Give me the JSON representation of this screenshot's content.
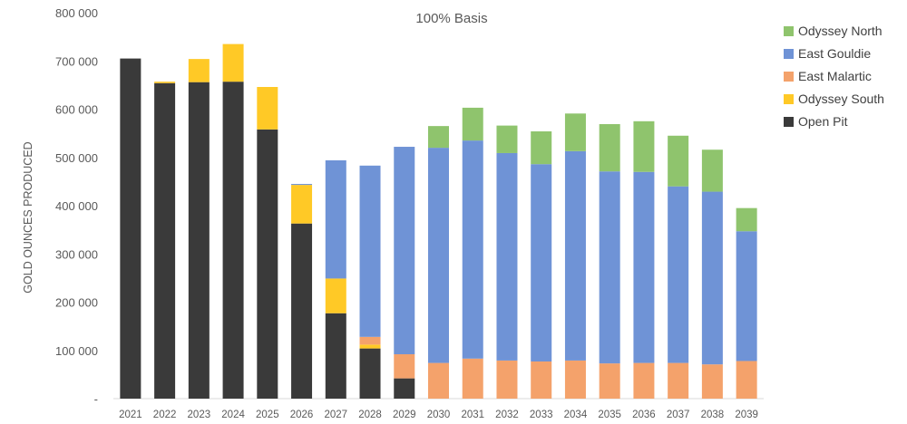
{
  "chart_data": {
    "type": "bar",
    "stacked": true,
    "title": "100% Basis",
    "xlabel": "",
    "ylabel": "GOLD OUNCES PRODUCED",
    "ylim": [
      0,
      800000
    ],
    "y_ticks": [
      {
        "value": 0,
        "label": "-"
      },
      {
        "value": 100000,
        "label": "100 000"
      },
      {
        "value": 200000,
        "label": "200 000"
      },
      {
        "value": 300000,
        "label": "300 000"
      },
      {
        "value": 400000,
        "label": "400 000"
      },
      {
        "value": 500000,
        "label": "500 000"
      },
      {
        "value": 600000,
        "label": "600 000"
      },
      {
        "value": 700000,
        "label": "700 000"
      },
      {
        "value": 800000,
        "label": "800 000"
      }
    ],
    "grid": false,
    "legend_position": "right",
    "categories": [
      "2021",
      "2022",
      "2023",
      "2024",
      "2025",
      "2026",
      "2027",
      "2028",
      "2029",
      "2030",
      "2031",
      "2032",
      "2033",
      "2034",
      "2035",
      "2036",
      "2037",
      "2038",
      "2039"
    ],
    "series": [
      {
        "name": "Open Pit",
        "color": "#3a3a3a",
        "values": [
          705000,
          654000,
          656000,
          657000,
          558000,
          363000,
          177000,
          104000,
          42000,
          0,
          0,
          0,
          0,
          0,
          0,
          0,
          0,
          0,
          0
        ]
      },
      {
        "name": "Odyssey South",
        "color": "#ffc926",
        "values": [
          0,
          3000,
          48000,
          78000,
          88000,
          80000,
          72000,
          8000,
          0,
          0,
          0,
          0,
          0,
          0,
          0,
          0,
          0,
          0,
          0
        ]
      },
      {
        "name": "East Malartic",
        "color": "#f4a26b",
        "values": [
          0,
          0,
          0,
          0,
          0,
          0,
          0,
          16000,
          50000,
          74000,
          83000,
          79000,
          77000,
          79000,
          73000,
          74000,
          74000,
          71000,
          78000
        ]
      },
      {
        "name": "East Gouldie",
        "color": "#6f93d6",
        "values": [
          0,
          0,
          0,
          0,
          0,
          2000,
          245000,
          355000,
          430000,
          446000,
          452000,
          430000,
          409000,
          434000,
          398000,
          396000,
          366000,
          358000,
          269000
        ]
      },
      {
        "name": "Odyssey North",
        "color": "#8fc46d",
        "values": [
          0,
          0,
          0,
          0,
          0,
          0,
          0,
          0,
          0,
          45000,
          68000,
          57000,
          68000,
          78000,
          98000,
          105000,
          105000,
          87000,
          48000
        ]
      }
    ],
    "legend_order": [
      "Odyssey North",
      "East Gouldie",
      "East Malartic",
      "Odyssey South",
      "Open Pit"
    ]
  }
}
